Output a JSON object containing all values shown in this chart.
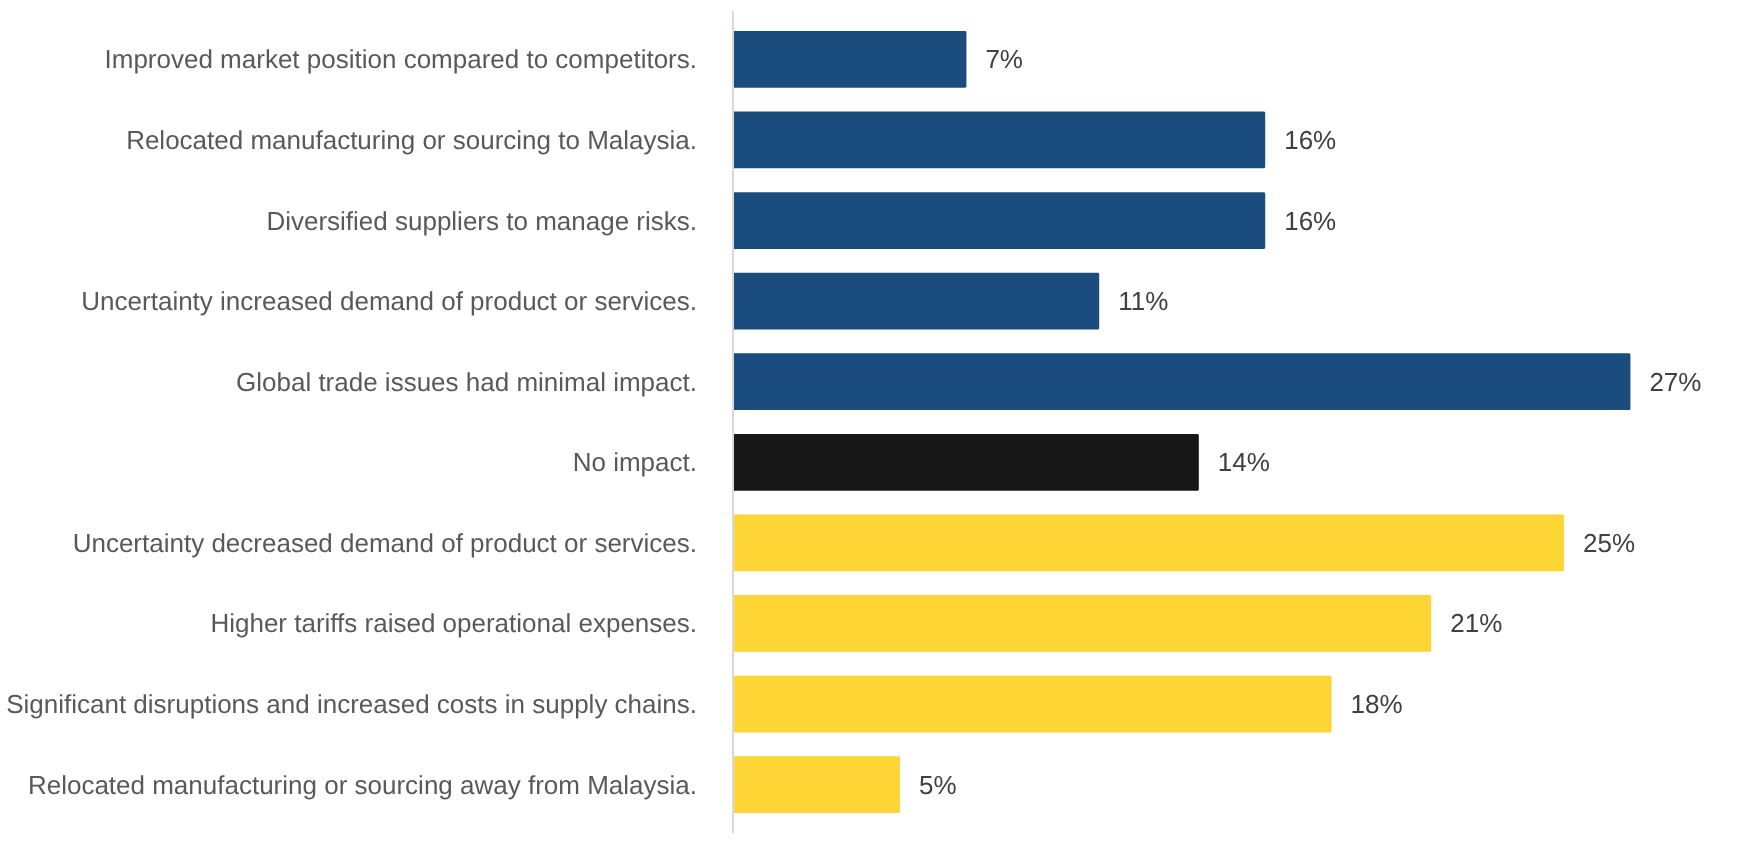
{
  "chart_data": {
    "type": "bar",
    "orientation": "horizontal",
    "categories": [
      "Improved market position compared to competitors.",
      "Relocated manufacturing or sourcing to Malaysia.",
      "Diversified suppliers to manage risks.",
      "Uncertainty increased demand of product or services.",
      "Global trade issues had minimal impact.",
      "No impact.",
      "Uncertainty decreased demand of product or services.",
      "Higher tariffs raised operational expenses.",
      "Significant disruptions and increased costs in supply chains.",
      "Relocated manufacturing or sourcing away from Malaysia."
    ],
    "values": [
      7,
      16,
      16,
      11,
      27,
      14,
      25,
      21,
      18,
      5
    ],
    "value_labels": [
      "7%",
      "16%",
      "16%",
      "11%",
      "27%",
      "14%",
      "25%",
      "21%",
      "18%",
      "5%"
    ],
    "colors": [
      "#1a4c7e",
      "#1a4c7e",
      "#1a4c7e",
      "#1a4c7e",
      "#1a4c7e",
      "#171717",
      "#fdd535",
      "#fdd535",
      "#fdd535",
      "#fdd535"
    ],
    "tick_labels": "y",
    "grid": false
  }
}
